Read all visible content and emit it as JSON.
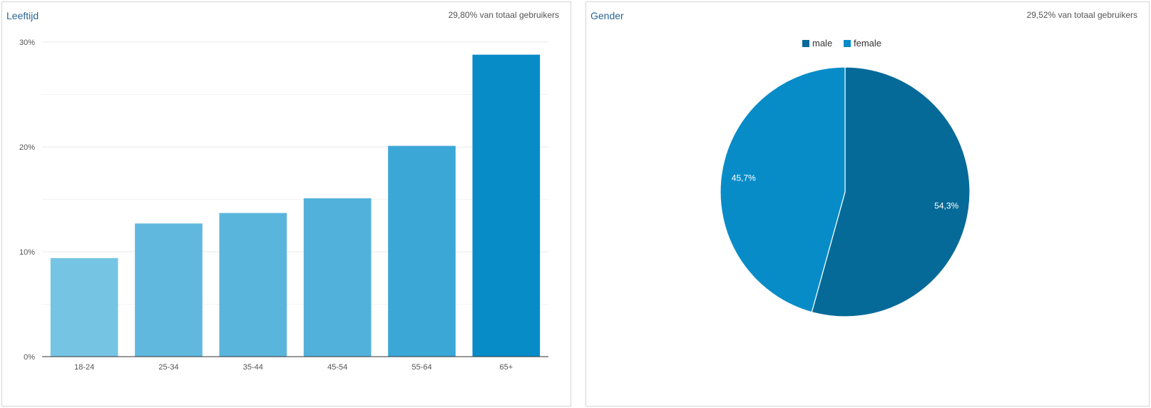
{
  "colors": {
    "bar_light": "#76c4e3",
    "bar_mid": "#5ab5dc",
    "bar_dark": "#078cc8",
    "male": "#066a98",
    "female": "#078cc8",
    "grid": "#e8e8e8",
    "axis": "#333333"
  },
  "chart_data": [
    {
      "type": "bar",
      "title": "Leeftijd",
      "subtitle": "29,80% van totaal gebruikers",
      "categories": [
        "18-24",
        "25-34",
        "35-44",
        "45-54",
        "55-64",
        "65+"
      ],
      "values": [
        9.4,
        12.7,
        13.7,
        15.1,
        20.1,
        28.8
      ],
      "bar_colors": [
        "#76c4e3",
        "#60b8df",
        "#5ab5dc",
        "#51b1db",
        "#3aa7d7",
        "#078cc8"
      ],
      "ylim": [
        0,
        30
      ],
      "yticks": [
        0,
        10,
        20,
        30
      ],
      "ytick_labels": [
        "0%",
        "10%",
        "20%",
        "30%"
      ],
      "grid": true
    },
    {
      "type": "pie",
      "title": "Gender",
      "subtitle": "29,52% van totaal gebruikers",
      "legend_position": "top",
      "slices": [
        {
          "name": "male",
          "value": 54.3,
          "label": "54,3%",
          "color": "#066a98"
        },
        {
          "name": "female",
          "value": 45.7,
          "label": "45,7%",
          "color": "#078cc8"
        }
      ]
    }
  ]
}
